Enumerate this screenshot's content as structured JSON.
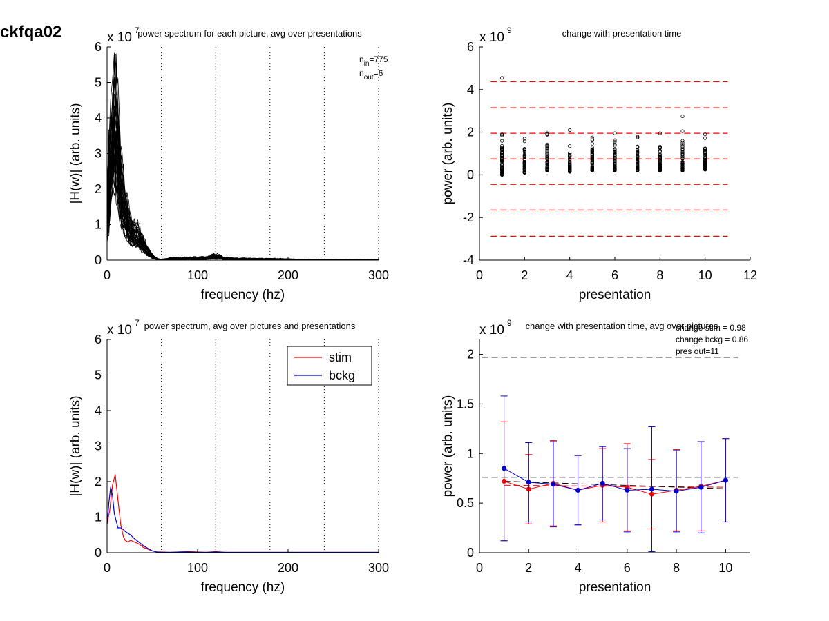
{
  "figure_title": "ckfqa02",
  "colors": {
    "stim": "#ff0000",
    "bckg": "#0000cc",
    "trace": "#000000",
    "ref_red": "#ff0000",
    "ref_black": "#000000"
  },
  "chart_data": [
    {
      "id": "p1",
      "type": "line",
      "title": "power spectrum for each picture, avg over presentations",
      "xlabel": "frequency (hz)",
      "ylabel": "|H(w)| (arb. units)",
      "exponent": "x 10",
      "exponent_power": "7",
      "xlim": [
        0,
        300
      ],
      "ylim": [
        0,
        6
      ],
      "xticks": [
        "0",
        "100",
        "200",
        "300"
      ],
      "yticks": [
        "0",
        "1",
        "2",
        "3",
        "4",
        "5",
        "6"
      ],
      "vlines": [
        60,
        120,
        180,
        240,
        300
      ],
      "annotation": {
        "n_in_base": "n",
        "n_in_sub": "in",
        "n_in_val": "=775",
        "n_out_base": "n",
        "n_out_sub": "out",
        "n_out_val": "=6"
      },
      "peak_envelope": {
        "x": [
          0,
          3,
          6,
          9,
          12,
          15,
          20,
          25,
          30,
          35,
          40,
          45,
          50,
          55,
          60,
          70,
          80,
          90,
          100,
          110,
          120,
          130,
          140,
          160,
          180,
          200,
          220,
          240,
          260,
          280,
          300
        ],
        "y": [
          1.2,
          3.5,
          4.4,
          5.8,
          4.2,
          2.8,
          1.9,
          1.2,
          1.0,
          0.9,
          0.6,
          0.35,
          0.15,
          0.05,
          0.02,
          0.05,
          0.06,
          0.07,
          0.07,
          0.07,
          0.14,
          0.07,
          0.05,
          0.04,
          0.04,
          0.03,
          0.02,
          0.02,
          0.02,
          0.01,
          0.01
        ]
      }
    },
    {
      "id": "p2",
      "type": "scatter",
      "title": "change with presentation time",
      "xlabel": "presentation",
      "ylabel": "power (arb. units)",
      "exponent": "x 10",
      "exponent_power": "9",
      "xlim": [
        0,
        12
      ],
      "ylim": [
        -4,
        6
      ],
      "xticks": [
        "0",
        "2",
        "4",
        "6",
        "8",
        "10",
        "12"
      ],
      "yticks": [
        "-4",
        "-2",
        "0",
        "2",
        "4",
        "6"
      ],
      "ref_lines_red": [
        4.37,
        3.15,
        1.95,
        0.75,
        -0.45,
        -1.65,
        -2.88
      ],
      "columns": [
        {
          "x": 1,
          "min": 0.0,
          "max": 1.9,
          "outliers": [
            4.55
          ]
        },
        {
          "x": 2,
          "min": 0.1,
          "max": 1.7,
          "outliers": []
        },
        {
          "x": 3,
          "min": 0.2,
          "max": 1.95,
          "outliers": []
        },
        {
          "x": 4,
          "min": 0.15,
          "max": 1.35,
          "outliers": [
            2.1
          ]
        },
        {
          "x": 5,
          "min": 0.2,
          "max": 1.75,
          "outliers": []
        },
        {
          "x": 6,
          "min": 0.2,
          "max": 1.95,
          "outliers": []
        },
        {
          "x": 7,
          "min": 0.2,
          "max": 1.8,
          "outliers": []
        },
        {
          "x": 8,
          "min": 0.2,
          "max": 1.95,
          "outliers": []
        },
        {
          "x": 9,
          "min": 0.2,
          "max": 2.05,
          "outliers": [
            2.75
          ]
        },
        {
          "x": 10,
          "min": 0.25,
          "max": 1.9,
          "outliers": []
        }
      ]
    },
    {
      "id": "p3",
      "type": "line",
      "title": "power spectrum, avg over pictures and presentations",
      "xlabel": "frequency (hz)",
      "ylabel": "|H(w)| (arb. units)",
      "exponent": "x 10",
      "exponent_power": "7",
      "xlim": [
        0,
        300
      ],
      "ylim": [
        0,
        6
      ],
      "xticks": [
        "0",
        "100",
        "200",
        "300"
      ],
      "yticks": [
        "0",
        "1",
        "2",
        "3",
        "4",
        "5",
        "6"
      ],
      "vlines": [
        60,
        120,
        180,
        240,
        300
      ],
      "legend": [
        "stim",
        "bckg"
      ],
      "legend_position": "top-right",
      "series": [
        {
          "name": "stim",
          "x": [
            0,
            3,
            6,
            9,
            12,
            15,
            18,
            20,
            23,
            26,
            30,
            35,
            40,
            45,
            50,
            55,
            60,
            70,
            80,
            90,
            100,
            110,
            120,
            130,
            150,
            200,
            250,
            300
          ],
          "y": [
            0.8,
            1.2,
            1.9,
            2.2,
            1.5,
            0.8,
            0.45,
            0.35,
            0.3,
            0.35,
            0.3,
            0.25,
            0.15,
            0.1,
            0.05,
            0.02,
            0.02,
            0.01,
            0.02,
            0.03,
            0.02,
            0.01,
            0.03,
            0.01,
            0.01,
            0.01,
            0.01,
            0.01
          ]
        },
        {
          "name": "bckg",
          "x": [
            0,
            2,
            4,
            6,
            8,
            10,
            12,
            15,
            18,
            20,
            23,
            26,
            30,
            35,
            40,
            45,
            50,
            55,
            60,
            70,
            80,
            90,
            100,
            110,
            120,
            130,
            150,
            200,
            250,
            300
          ],
          "y": [
            0.8,
            1.4,
            1.85,
            1.6,
            1.1,
            0.9,
            0.7,
            0.7,
            0.65,
            0.6,
            0.55,
            0.5,
            0.4,
            0.3,
            0.2,
            0.12,
            0.05,
            0.02,
            0.01,
            0.01,
            0.02,
            0.02,
            0.01,
            0.01,
            0.02,
            0.01,
            0.01,
            0.01,
            0.01,
            0.01
          ]
        }
      ]
    },
    {
      "id": "p4",
      "type": "line",
      "title": "change with presentation time, avg over pictures",
      "xlabel": "presentation",
      "ylabel": "power (arb. units)",
      "exponent": "x 10",
      "exponent_power": "9",
      "xlim": [
        0,
        11
      ],
      "ylim": [
        0,
        2.15
      ],
      "xticks": [
        "0",
        "2",
        "4",
        "6",
        "8",
        "10"
      ],
      "yticks": [
        "0",
        "0.5",
        "1",
        "1.5",
        "2"
      ],
      "annotation_lines": [
        "change stim = 0.98",
        "change bckg = 0.86",
        "pres out=11"
      ],
      "ref_lines_black": [
        1.97,
        0.76
      ],
      "trend_stim": [
        0.68,
        0.66
      ],
      "trend_bckg": [
        0.72,
        0.645
      ],
      "x": [
        1,
        2,
        3,
        4,
        5,
        6,
        7,
        8,
        9,
        10
      ],
      "series": [
        {
          "name": "stim",
          "values": [
            0.72,
            0.64,
            0.7,
            0.63,
            0.68,
            0.66,
            0.59,
            0.63,
            0.67,
            0.73
          ],
          "err": [
            0.6,
            0.35,
            0.43,
            0.35,
            0.37,
            0.44,
            0.35,
            0.41,
            0.45,
            0.42
          ]
        },
        {
          "name": "bckg",
          "values": [
            0.85,
            0.71,
            0.69,
            0.63,
            0.7,
            0.63,
            0.64,
            0.62,
            0.66,
            0.73
          ],
          "err": [
            0.73,
            0.4,
            0.43,
            0.35,
            0.37,
            0.42,
            0.63,
            0.41,
            0.46,
            0.42
          ]
        }
      ]
    }
  ]
}
